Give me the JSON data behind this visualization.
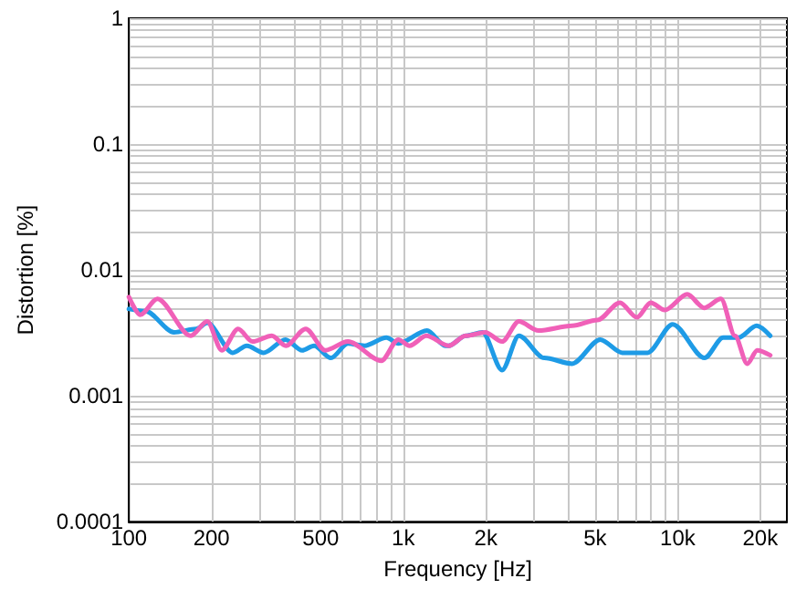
{
  "chart_data": {
    "type": "line",
    "xlabel": "Frequency [Hz]",
    "ylabel": "Distortion [%]",
    "log": "xy",
    "grid": true,
    "marker": "none",
    "line_style": "solid",
    "xlim": [
      100,
      25000
    ],
    "xticks": [
      100,
      200,
      {
        "value": 300,
        "label": null
      },
      {
        "value": 400,
        "label": null
      },
      500,
      {
        "value": 600,
        "label": null
      },
      {
        "value": 700,
        "label": null
      },
      {
        "value": 800,
        "label": null
      },
      {
        "value": 900,
        "label": null
      },
      {
        "value": 1000,
        "label": "1k"
      },
      {
        "value": 2000,
        "label": "2k"
      },
      {
        "value": 3000,
        "label": null
      },
      {
        "value": 4000,
        "label": null
      },
      {
        "value": 5000,
        "label": "5k"
      },
      {
        "value": 6000,
        "label": null
      },
      {
        "value": 7000,
        "label": null
      },
      {
        "value": 8000,
        "label": null
      },
      {
        "value": 9000,
        "label": null
      },
      {
        "value": 10000,
        "label": "10k"
      },
      {
        "value": 20000,
        "label": "20k"
      }
    ],
    "ylim": [
      0.0001,
      1
    ],
    "yticks": [
      0.0001,
      {
        "value": 0.0002,
        "label": null
      },
      {
        "value": 0.0003,
        "label": null
      },
      {
        "value": 0.0004,
        "label": null
      },
      {
        "value": 0.0005,
        "label": null
      },
      {
        "value": 0.0006,
        "label": null
      },
      {
        "value": 0.0007,
        "label": null
      },
      {
        "value": 0.0008,
        "label": null
      },
      {
        "value": 0.0009,
        "label": null
      },
      0.001,
      {
        "value": 0.002,
        "label": null
      },
      {
        "value": 0.003,
        "label": null
      },
      {
        "value": 0.004,
        "label": null
      },
      {
        "value": 0.005,
        "label": null
      },
      {
        "value": 0.006,
        "label": null
      },
      {
        "value": 0.007,
        "label": null
      },
      {
        "value": 0.008,
        "label": null
      },
      {
        "value": 0.009,
        "label": null
      },
      0.01,
      {
        "value": 0.02,
        "label": null
      },
      {
        "value": 0.03,
        "label": null
      },
      {
        "value": 0.04,
        "label": null
      },
      {
        "value": 0.05,
        "label": null
      },
      {
        "value": 0.06,
        "label": null
      },
      {
        "value": 0.07,
        "label": null
      },
      {
        "value": 0.08,
        "label": null
      },
      {
        "value": 0.09,
        "label": null
      },
      0.1,
      {
        "value": 0.2,
        "label": null
      },
      {
        "value": 0.3,
        "label": null
      },
      {
        "value": 0.4,
        "label": null
      },
      {
        "value": 0.5,
        "label": null
      },
      {
        "value": 0.6,
        "label": null
      },
      {
        "value": 0.7,
        "label": null
      },
      {
        "value": 0.8,
        "label": null
      },
      {
        "value": 0.9,
        "label": null
      },
      1
    ],
    "series": [
      {
        "color": "#1e9be6",
        "x": [
          100,
          115,
          146,
          176,
          193,
          239,
          269,
          310,
          372,
          428,
          473,
          545,
          628,
          722,
          868,
          959,
          1220,
          1423,
          1465,
          1687,
          1943,
          2291,
          2638,
          3263,
          4123,
          5221,
          6280,
          7762,
          9590,
          12530,
          14650,
          16640,
          19410,
          21740
        ],
        "values": [
          0.0049,
          0.0047,
          0.0032,
          0.0034,
          0.0038,
          0.0022,
          0.0025,
          0.0022,
          0.0028,
          0.0023,
          0.0025,
          0.002,
          0.0026,
          0.0025,
          0.0029,
          0.0026,
          0.0033,
          0.0025,
          0.0025,
          0.003,
          0.0032,
          0.0016,
          0.003,
          0.002,
          0.0018,
          0.0028,
          0.0022,
          0.0022,
          0.0037,
          0.002,
          0.0029,
          0.0029,
          0.0036,
          0.003
        ]
      },
      {
        "color": "#f060b8",
        "x": [
          100,
          110,
          127,
          168,
          193,
          218,
          250,
          282,
          332,
          373,
          441,
          520,
          628,
          832,
          959,
          1054,
          1213,
          1465,
          1687,
          1990,
          2291,
          2638,
          3109,
          4123,
          5096,
          6160,
          7097,
          7980,
          8970,
          10840,
          12480,
          14380,
          16170,
          17920,
          19500,
          21740
        ],
        "values": [
          0.0061,
          0.0044,
          0.0059,
          0.003,
          0.0039,
          0.0023,
          0.0034,
          0.0027,
          0.003,
          0.0025,
          0.0034,
          0.0023,
          0.0027,
          0.0019,
          0.0028,
          0.0025,
          0.003,
          0.0025,
          0.003,
          0.0032,
          0.0027,
          0.0039,
          0.0033,
          0.0036,
          0.004,
          0.0055,
          0.0042,
          0.0055,
          0.0048,
          0.0064,
          0.005,
          0.0059,
          0.003,
          0.0018,
          0.0023,
          0.0021
        ]
      }
    ]
  }
}
